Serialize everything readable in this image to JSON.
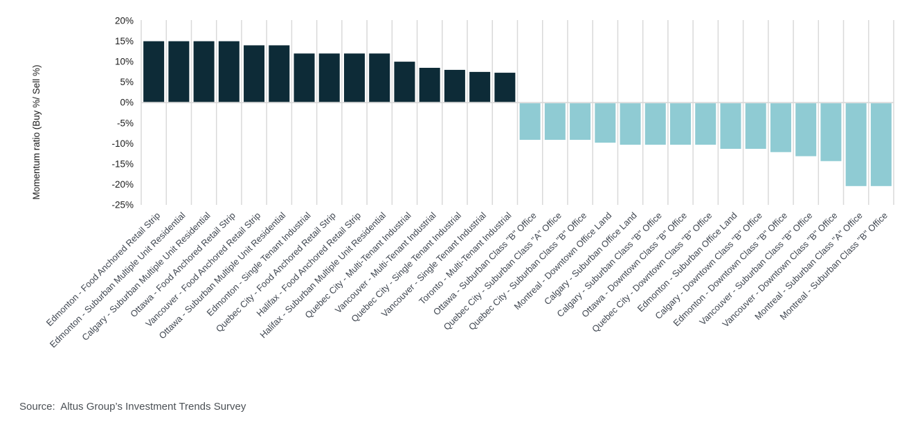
{
  "source_note": "Source:  Altus Group’s Investment Trends Survey",
  "chart_data": {
    "type": "bar",
    "title": "",
    "xlabel": "",
    "ylabel": "Momentum ratio (Buy %/ Sell %)",
    "ylim": [
      -25,
      20
    ],
    "yticks": [
      20,
      15,
      10,
      5,
      0,
      -5,
      -10,
      -15,
      -20,
      -25
    ],
    "ytick_labels": [
      "20%",
      "15%",
      "10%",
      "5%",
      "0%",
      "-5%",
      "-10%",
      "-15%",
      "-20%",
      "-25%"
    ],
    "grid": "vertical-gridlines-between-categories",
    "legend": "none",
    "bar_orientation": "vertical",
    "categories": [
      "Edmonton - Food Anchored Retail Strip",
      "Edmonton - Suburban Multiple Unit Residential",
      "Calgary - Suburban Multiple Unit Residential",
      "Ottawa - Food Anchored Retail Strip",
      "Vancouver - Food Anchored Retail Strip",
      "Ottawa - Suburban Multiple Unit Residential",
      "Edmonton - Single Tenant Industrial",
      "Quebec City - Food Anchored Retail Strip",
      "Halifax - Food Anchored Retail Strip",
      "Halifax - Suburban Multiple Unit Residential",
      "Quebec City - Multi-Tenant Industrial",
      "Vancouver - Multi-Tenant Industrial",
      "Quebec City - Single Tenant Industrial",
      "Vancouver - Single Tenant Industrial",
      "Toronto - Multi-Tenant Industrial",
      "Ottawa - Suburban Class \"B\" Office",
      "Quebec City - Suburban Class \"A\" Office",
      "Quebec City - Suburban Class \"B\" Office",
      "Montreal - Downtown Office Land",
      "Calgary - Suburban Office Land",
      "Calgary - Suburban Class \"B\" Office",
      "Ottawa - Downtown Class \"B\" Office",
      "Quebec City - Downtown Class \"B\" Office",
      "Edmonton - Suburban Office Land",
      "Calgary - Downtown Class \"B\" Office",
      "Edmonton - Downtown Class \"B\" Office",
      "Vancouver - Suburban Class \"B\" Office",
      "Vancouver - Downtown Class \"B\" Office",
      "Montreal - Suburban Class \"A\" Office",
      "Montreal - Suburban Class \"B\" Office"
    ],
    "values": [
      15,
      15,
      15,
      15,
      14,
      14,
      12,
      12,
      12,
      12,
      10,
      8.5,
      8,
      7.5,
      7.3,
      -9.1,
      -9.1,
      -9.1,
      -9.8,
      -10.3,
      -10.3,
      -10.3,
      -10.3,
      -11.3,
      -11.3,
      -12.1,
      -13.1,
      -14.3,
      -20.4,
      -20.4
    ],
    "colors": {
      "positive_bar": "#0d2b37",
      "negative_bar": "#8fcbd3",
      "gridline": "#d9d9d9",
      "zero_line": "#d9d9d9",
      "tick_label": "#1a1a1a",
      "axis_title": "#1a1a1a",
      "category_label": "#3f4650",
      "source_text": "#4b5055"
    }
  }
}
